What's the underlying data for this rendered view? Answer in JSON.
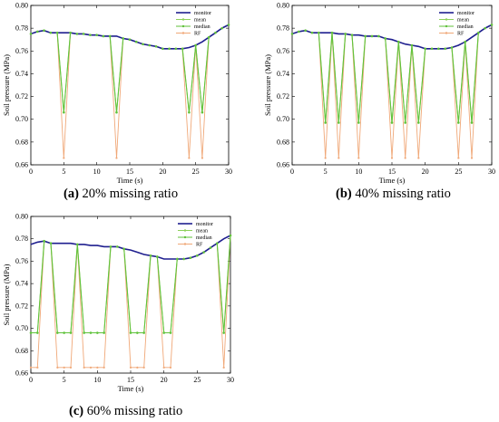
{
  "colors": {
    "monitor": "#1f1f8f",
    "mean": "#8ed05a",
    "median": "#5fc23a",
    "rf": "#f0a878"
  },
  "chart_data": [
    {
      "type": "line",
      "caption": {
        "letter": "(a)",
        "text": " 20% missing ratio"
      },
      "xlabel": "Time (s)",
      "ylabel": "Soil pressure (MPa)",
      "xlim": [
        0,
        30
      ],
      "ylim": [
        0.66,
        0.8
      ],
      "xticks": [
        0,
        5,
        10,
        15,
        20,
        25,
        30
      ],
      "yticks": [
        0.66,
        0.68,
        0.7,
        0.72,
        0.74,
        0.76,
        0.78,
        0.8
      ],
      "grid": false,
      "legend_position": "top-right",
      "x": [
        0,
        1,
        2,
        3,
        4,
        5,
        6,
        7,
        8,
        9,
        10,
        11,
        12,
        13,
        14,
        15,
        16,
        17,
        18,
        19,
        20,
        21,
        22,
        23,
        24,
        25,
        26,
        27,
        28,
        29,
        30
      ],
      "monitor": [
        0.775,
        0.777,
        0.778,
        0.776,
        0.776,
        0.776,
        0.776,
        0.775,
        0.775,
        0.774,
        0.774,
        0.773,
        0.773,
        0.773,
        0.771,
        0.77,
        0.768,
        0.766,
        0.765,
        0.764,
        0.762,
        0.762,
        0.762,
        0.762,
        0.763,
        0.765,
        0.768,
        0.772,
        0.776,
        0.78,
        0.783
      ],
      "missing_x": [
        5,
        13,
        24,
        26
      ],
      "mean_value": 0.706,
      "median_value": 0.706,
      "rf_value": 0.666,
      "series": [
        {
          "name": "monitor"
        },
        {
          "name": "mean"
        },
        {
          "name": "median"
        },
        {
          "name": "RF"
        }
      ]
    },
    {
      "type": "line",
      "caption": {
        "letter": "(b)",
        "text": " 40% missing ratio"
      },
      "xlabel": "Time (s)",
      "ylabel": "Soil pressure (MPa)",
      "xlim": [
        0,
        30
      ],
      "ylim": [
        0.66,
        0.8
      ],
      "xticks": [
        0,
        5,
        10,
        15,
        20,
        25,
        30
      ],
      "yticks": [
        0.66,
        0.68,
        0.7,
        0.72,
        0.74,
        0.76,
        0.78,
        0.8
      ],
      "grid": false,
      "legend_position": "top-right",
      "x": [
        0,
        1,
        2,
        3,
        4,
        5,
        6,
        7,
        8,
        9,
        10,
        11,
        12,
        13,
        14,
        15,
        16,
        17,
        18,
        19,
        20,
        21,
        22,
        23,
        24,
        25,
        26,
        27,
        28,
        29,
        30
      ],
      "monitor": [
        0.775,
        0.777,
        0.778,
        0.776,
        0.776,
        0.776,
        0.776,
        0.775,
        0.775,
        0.774,
        0.774,
        0.773,
        0.773,
        0.773,
        0.771,
        0.77,
        0.768,
        0.766,
        0.765,
        0.764,
        0.762,
        0.762,
        0.762,
        0.762,
        0.763,
        0.765,
        0.768,
        0.772,
        0.776,
        0.78,
        0.783
      ],
      "missing_x": [
        5,
        7,
        10,
        15,
        17,
        19,
        25,
        27
      ],
      "mean_value": 0.697,
      "median_value": 0.697,
      "rf_value": 0.666,
      "series": [
        {
          "name": "monitor"
        },
        {
          "name": "mean"
        },
        {
          "name": "median"
        },
        {
          "name": "RF"
        }
      ]
    },
    {
      "type": "line",
      "caption": {
        "letter": "(c)",
        "text": " 60% missing ratio"
      },
      "xlabel": "Time (s)",
      "ylabel": "Soil pressure (MPa)",
      "xlim": [
        0,
        30
      ],
      "ylim": [
        0.66,
        0.8
      ],
      "xticks": [
        0,
        5,
        10,
        15,
        20,
        25,
        30
      ],
      "yticks": [
        0.66,
        0.68,
        0.7,
        0.72,
        0.74,
        0.76,
        0.78,
        0.8
      ],
      "grid": false,
      "legend_position": "top-right",
      "x": [
        0,
        1,
        2,
        3,
        4,
        5,
        6,
        7,
        8,
        9,
        10,
        11,
        12,
        13,
        14,
        15,
        16,
        17,
        18,
        19,
        20,
        21,
        22,
        23,
        24,
        25,
        26,
        27,
        28,
        29,
        30
      ],
      "monitor": [
        0.775,
        0.777,
        0.778,
        0.776,
        0.776,
        0.776,
        0.776,
        0.775,
        0.775,
        0.774,
        0.774,
        0.773,
        0.773,
        0.773,
        0.771,
        0.77,
        0.768,
        0.766,
        0.765,
        0.764,
        0.762,
        0.762,
        0.762,
        0.762,
        0.763,
        0.765,
        0.768,
        0.772,
        0.776,
        0.78,
        0.783
      ],
      "missing_x": [
        0,
        1,
        4,
        5,
        6,
        8,
        9,
        10,
        11,
        15,
        16,
        17,
        20,
        21,
        29
      ],
      "mean_value": 0.696,
      "median_value": 0.696,
      "rf_value": 0.665,
      "series": [
        {
          "name": "monitor"
        },
        {
          "name": "mean"
        },
        {
          "name": "median"
        },
        {
          "name": "RF"
        }
      ]
    }
  ]
}
